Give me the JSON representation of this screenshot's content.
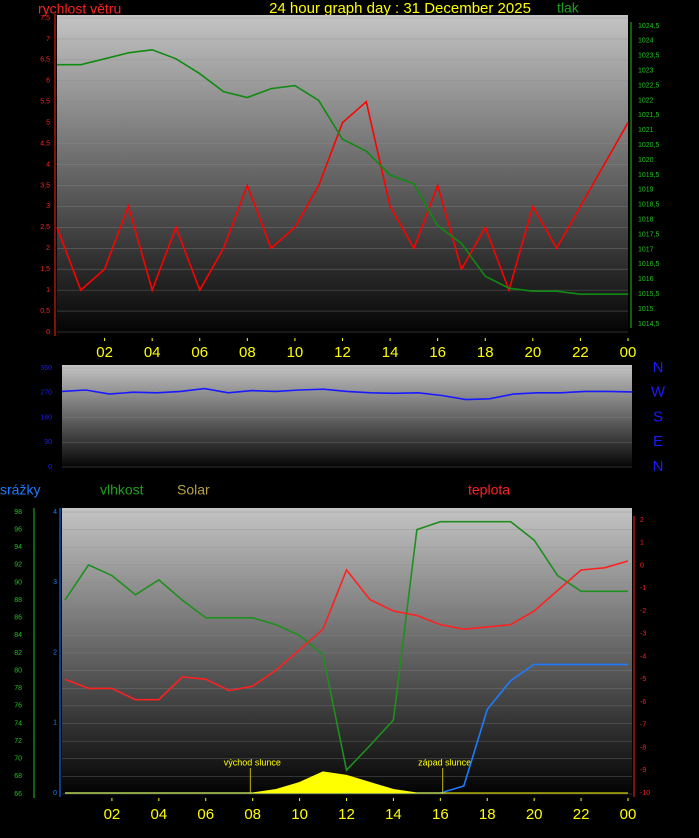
{
  "chart_data": [
    {
      "type": "line",
      "title": "24 hour graph day : 31 December 2025",
      "ylabel": "rychlost větru",
      "y2label": "tlak",
      "x": [
        0,
        1,
        2,
        3,
        4,
        5,
        6,
        7,
        8,
        9,
        10,
        11,
        12,
        13,
        14,
        15,
        16,
        17,
        18,
        19,
        20,
        21,
        22,
        23,
        24
      ],
      "xlim": [
        0,
        24
      ],
      "xticks": [
        {
          "value": 2,
          "label": "02"
        },
        {
          "value": 4,
          "label": "04"
        },
        {
          "value": 6,
          "label": "06"
        },
        {
          "value": 8,
          "label": "08"
        },
        10,
        12,
        14,
        16,
        18,
        20,
        22,
        {
          "value": 24,
          "label": "00"
        }
      ],
      "ylim": [
        0,
        7.5
      ],
      "yticks": [
        0,
        {
          "value": 0.5,
          "label": "0,5"
        },
        1,
        {
          "value": 1.5,
          "label": "1,5"
        },
        2,
        {
          "value": 2.5,
          "label": "2,5"
        },
        3,
        {
          "value": 3.5,
          "label": "3,5"
        },
        4,
        {
          "value": 4.5,
          "label": "4,5"
        },
        5,
        {
          "value": 5.5,
          "label": "5,5"
        },
        6,
        {
          "value": 6.5,
          "label": "6,5"
        },
        7,
        {
          "value": 7.5,
          "label": "7,5"
        }
      ],
      "y2lim": [
        1014.5,
        1024.5
      ],
      "y2ticks": [
        {
          "value": 1014.5,
          "label": "1014,5"
        },
        1015,
        {
          "value": 1015.5,
          "label": "1015,5"
        },
        1016,
        {
          "value": 1016.5,
          "label": "1016,5"
        },
        1017,
        {
          "value": 1017.5,
          "label": "1017,5"
        },
        1018,
        {
          "value": 1018.5,
          "label": "1018,5"
        },
        1019,
        {
          "value": 1019.5,
          "label": "1019,5"
        },
        1020,
        {
          "value": 1020.5,
          "label": "1020,5"
        },
        1021,
        {
          "value": 1021.5,
          "label": "1021,5"
        },
        1022,
        {
          "value": 1022.5,
          "label": "1022,5"
        },
        1023,
        {
          "value": 1023.5,
          "label": "1023,5"
        },
        1024,
        {
          "value": 1024.5,
          "label": "1024,5"
        }
      ],
      "grid": true,
      "series": [
        {
          "color": "#ff0000",
          "axis": "y",
          "values": [
            2.5,
            1.0,
            1.5,
            3.0,
            1.0,
            2.5,
            1.0,
            2.0,
            3.5,
            2.0,
            2.5,
            3.5,
            5.0,
            5.5,
            3.0,
            2.0,
            3.5,
            1.5,
            2.5,
            1.0,
            3.0,
            2.0,
            3.0,
            4.0,
            5.0
          ]
        },
        {
          "color": "#108a10",
          "axis": "y2",
          "values": [
            1023.2,
            1023.2,
            1023.4,
            1023.6,
            1023.7,
            1023.4,
            1022.9,
            1022.3,
            1022.1,
            1022.4,
            1022.5,
            1022.0,
            1020.7,
            1020.3,
            1019.5,
            1019.2,
            1017.8,
            1017.2,
            1016.1,
            1015.7,
            1015.6,
            1015.6,
            1015.5,
            1015.5,
            1015.5
          ]
        }
      ]
    },
    {
      "type": "line",
      "x": [
        0,
        1,
        2,
        3,
        4,
        5,
        6,
        7,
        8,
        9,
        10,
        11,
        12,
        13,
        14,
        15,
        16,
        17,
        18,
        19,
        20,
        21,
        22,
        23,
        24
      ],
      "xlim": [
        0,
        24
      ],
      "ylim": [
        0,
        360
      ],
      "yticks": [
        0,
        90,
        180,
        270,
        360
      ],
      "y2lim": [
        0,
        360
      ],
      "y2ticks": [
        {
          "value": 360,
          "label": "N"
        },
        {
          "value": 270,
          "label": "W"
        },
        {
          "value": 180,
          "label": "S"
        },
        {
          "value": 90,
          "label": "E"
        },
        {
          "value": 0,
          "label": "N"
        }
      ],
      "grid": true,
      "series": [
        {
          "color": "#1a1aff",
          "axis": "y",
          "values": [
            275,
            280,
            265,
            272,
            270,
            275,
            285,
            270,
            278,
            275,
            280,
            283,
            275,
            270,
            268,
            270,
            260,
            245,
            248,
            265,
            270,
            270,
            275,
            275,
            273
          ]
        }
      ]
    },
    {
      "type": "line",
      "x": [
        0,
        1,
        2,
        3,
        4,
        5,
        6,
        7,
        8,
        9,
        10,
        11,
        12,
        13,
        14,
        15,
        16,
        17,
        18,
        19,
        20,
        21,
        22,
        23,
        24
      ],
      "xlim": [
        0,
        24
      ],
      "xticks": [
        {
          "value": 2,
          "label": "02"
        },
        {
          "value": 4,
          "label": "04"
        },
        {
          "value": 6,
          "label": "06"
        },
        {
          "value": 8,
          "label": "08"
        },
        10,
        12,
        14,
        16,
        18,
        20,
        22,
        {
          "value": 24,
          "label": "00"
        }
      ],
      "ylim": [
        66,
        98
      ],
      "yticks": [
        66,
        68,
        70,
        72,
        74,
        76,
        78,
        80,
        82,
        84,
        86,
        88,
        90,
        92,
        94,
        96,
        98
      ],
      "y2lim": [
        -10,
        2
      ],
      "y2ticks": [
        -10,
        -9,
        -8,
        -7,
        -6,
        -5,
        -4,
        -3,
        -2,
        -1,
        0,
        1,
        2
      ],
      "y3lim": [
        0,
        4
      ],
      "y3ticks": [
        0,
        1,
        2,
        3,
        4
      ],
      "grid": true,
      "annotations": [
        {
          "text": "východ slunce",
          "x": 7.9
        },
        {
          "text": "západ slunce",
          "x": 16.1
        }
      ],
      "series": [
        {
          "name": "srážky",
          "color": "#1e7bff",
          "axis": "y3",
          "values": [
            0,
            0,
            0,
            0,
            0,
            0,
            0,
            0,
            0,
            0,
            0,
            0,
            0,
            0,
            0,
            0,
            0,
            0.1,
            1.19,
            1.6,
            1.83,
            1.83,
            1.83,
            1.83,
            1.83
          ]
        },
        {
          "name": "vlhkost",
          "color": "#1f8f1f",
          "axis": "y",
          "values": [
            88,
            92,
            90.8,
            88.6,
            90.3,
            88,
            86,
            86,
            86,
            85.2,
            84,
            81.8,
            68.7,
            71.5,
            74.4,
            96,
            96.9,
            96.9,
            96.9,
            96.9,
            94.8,
            90.8,
            89,
            89,
            89
          ]
        },
        {
          "name": "Solar",
          "color": "#ffff00",
          "axis": "y3",
          "fill": true,
          "values": [
            0,
            0,
            0,
            0,
            0,
            0,
            0,
            0,
            0,
            0.05,
            0.15,
            0.3,
            0.25,
            0.15,
            0.05,
            0,
            0,
            0,
            0,
            0,
            0,
            0,
            0,
            0,
            0
          ]
        },
        {
          "name": "teplota",
          "color": "#ff2020",
          "axis": "y2",
          "values": [
            -5.0,
            -5.4,
            -5.4,
            -5.9,
            -5.9,
            -4.9,
            -5.0,
            -5.5,
            -5.3,
            -4.6,
            -3.7,
            -2.8,
            -0.2,
            -1.5,
            -2.0,
            -2.2,
            -2.6,
            -2.8,
            -2.7,
            -2.6,
            -2.0,
            -1.1,
            -0.2,
            -0.1,
            0.2
          ]
        }
      ]
    }
  ]
}
